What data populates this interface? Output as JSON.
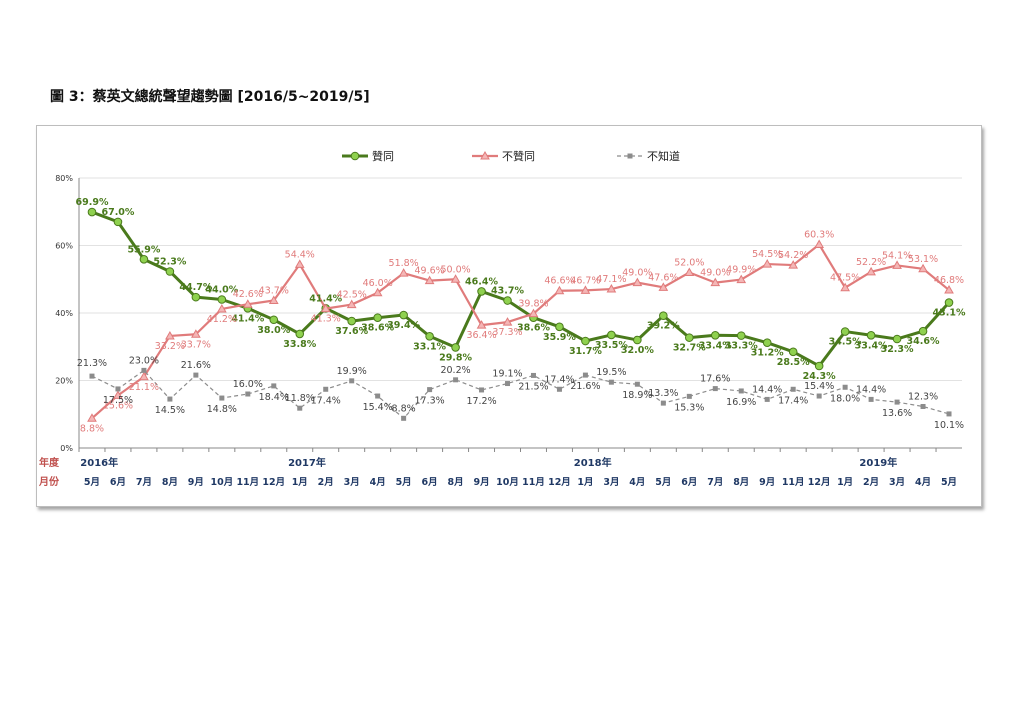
{
  "page": {
    "title": "圖 3：蔡英文總統聲望趨勢圖  [2016/5~2019/5]"
  },
  "colors": {
    "approve": "#4a7a1c",
    "approve_marker": "#8fd14f",
    "disapprove": "#e07b7b",
    "unknown": "#8c8c8c",
    "month_label": "#1f3864",
    "year_label": "#1f3864",
    "axis_caption": "#c0504d"
  },
  "chart_data": {
    "type": "line",
    "x_row_labels": {
      "year": "年度",
      "month": "月份"
    },
    "years": [
      {
        "label": "2016年",
        "at_index": 0
      },
      {
        "label": "2017年",
        "at_index": 8
      },
      {
        "label": "2018年",
        "at_index": 19
      },
      {
        "label": "2019年",
        "at_index": 30
      }
    ],
    "categories": [
      "5月",
      "6月",
      "7月",
      "8月",
      "9月",
      "10月",
      "11月",
      "12月",
      "1月",
      "2月",
      "3月",
      "4月",
      "5月",
      "6月",
      "8月",
      "9月",
      "10月",
      "11月",
      "12月",
      "1月",
      "3月",
      "4月",
      "5月",
      "6月",
      "7月",
      "8月",
      "9月",
      "11月",
      "12月",
      "1月",
      "2月",
      "3月",
      "4月",
      "5月"
    ],
    "ylim": [
      0,
      80
    ],
    "yticks": [
      "0%",
      "20%",
      "40%",
      "60%",
      "80%"
    ],
    "grid": true,
    "legend_position": "top",
    "series": [
      {
        "name": "贊同",
        "values": [
          69.9,
          67.0,
          55.9,
          52.3,
          44.7,
          44.0,
          41.4,
          38.0,
          33.8,
          41.4,
          37.6,
          38.6,
          39.4,
          33.1,
          29.8,
          46.4,
          43.7,
          38.6,
          35.9,
          31.7,
          33.5,
          32.0,
          39.2,
          32.7,
          33.4,
          33.3,
          31.2,
          28.5,
          24.3,
          34.5,
          33.4,
          32.3,
          34.6,
          43.1
        ],
        "labels": [
          "69.9%",
          "67.0%",
          "55.9%",
          "52.3%",
          "44.7%",
          "44.0%",
          "41.4%",
          "38.0%",
          "33.8%",
          "41.4%",
          "37.6%",
          "38.6%",
          "39.4%",
          "33.1%",
          "29.8%",
          "46.4%",
          "43.7%",
          "38.6%",
          "35.9%",
          "31.7%",
          "33.5%",
          "32.0%",
          "39.2%",
          "32.7%",
          "33.4%",
          "33.3%",
          "31.2%",
          "28.5%",
          "24.3%",
          "34.5%",
          "33.4%",
          "32.3%",
          "34.6%",
          "43.1%"
        ]
      },
      {
        "name": "不贊同",
        "values": [
          8.8,
          15.6,
          21.1,
          33.2,
          33.7,
          41.2,
          42.6,
          43.7,
          54.4,
          41.3,
          42.5,
          46.0,
          51.8,
          49.6,
          50.0,
          36.4,
          37.3,
          39.8,
          46.6,
          46.7,
          47.1,
          49.0,
          47.6,
          52.0,
          49.0,
          49.9,
          54.5,
          54.2,
          60.3,
          47.5,
          52.2,
          54.1,
          53.1,
          46.8
        ],
        "labels": [
          "8.8%",
          "15.6%",
          "21.1%",
          "33.2%",
          "33.7%",
          "41.2%",
          "42.6%",
          "43.7%",
          "54.4%",
          "41.3%",
          "42.5%",
          "46.0%",
          "51.8%",
          "49.6%",
          "50.0%",
          "36.4%",
          "37.3%",
          "39.8%",
          "46.6%",
          "46.7%",
          "47.1%",
          "49.0%",
          "47.6%",
          "52.0%",
          "49.0%",
          "49.9%",
          "54.5%",
          "54.2%",
          "60.3%",
          "47.5%",
          "52.2%",
          "54.1%",
          "53.1%",
          "46.8%"
        ]
      },
      {
        "name": "不知道",
        "values": [
          21.3,
          17.5,
          23.0,
          14.5,
          21.6,
          14.8,
          16.0,
          18.4,
          11.8,
          17.4,
          19.9,
          15.4,
          8.8,
          17.3,
          20.2,
          17.2,
          19.1,
          21.5,
          17.4,
          21.6,
          19.5,
          18.9,
          13.3,
          15.3,
          17.6,
          16.9,
          14.4,
          17.4,
          15.4,
          18.0,
          14.4,
          13.6,
          12.3,
          10.1
        ],
        "labels": [
          "21.3%",
          "17.5%",
          "23.0%",
          "14.5%",
          "21.6%",
          "14.8%",
          "16.0%",
          "18.4%",
          "11.8%",
          "17.4%",
          "19.9%",
          "15.4%",
          "8.8%",
          "17.3%",
          "20.2%",
          "17.2%",
          "19.1%",
          "21.5%",
          "17.4%",
          "21.6%",
          "19.5%",
          "18.9%",
          "13.3%",
          "15.3%",
          "17.6%",
          "16.9%",
          "14.4%",
          "17.4%",
          "15.4%",
          "18.0%",
          "14.4%",
          "13.6%",
          "12.3%",
          "10.1%"
        ]
      }
    ]
  }
}
